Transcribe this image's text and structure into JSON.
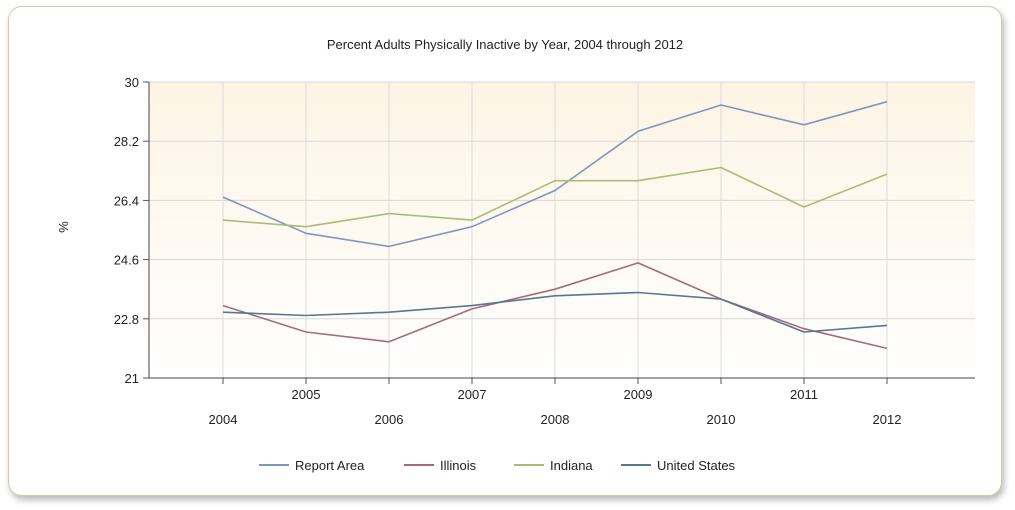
{
  "chart_data": {
    "type": "line",
    "title": "Percent Adults Physically Inactive by Year, 2004 through 2012",
    "ylabel": "%",
    "xlabel": "",
    "x": [
      "2004",
      "2005",
      "2006",
      "2007",
      "2008",
      "2009",
      "2010",
      "2011",
      "2012"
    ],
    "ylim": [
      21,
      30
    ],
    "yticks": [
      "21",
      "22.8",
      "24.6",
      "26.4",
      "28.2",
      "30"
    ],
    "grid": true,
    "legend_position": "bottom",
    "series": [
      {
        "name": "Report Area",
        "color": "#7e97bf",
        "values": [
          26.5,
          25.4,
          25.0,
          25.6,
          26.7,
          28.5,
          29.3,
          28.7,
          29.4
        ]
      },
      {
        "name": "Illinois",
        "color": "#a86a78",
        "values": [
          23.2,
          22.4,
          22.1,
          23.1,
          23.7,
          24.5,
          23.4,
          22.5,
          21.9
        ]
      },
      {
        "name": "Indiana",
        "color": "#a9bc79",
        "values": [
          25.8,
          25.6,
          26.0,
          25.8,
          27.0,
          27.0,
          27.4,
          26.2,
          27.2
        ]
      },
      {
        "name": "United States",
        "color": "#55798f",
        "values": [
          23.0,
          22.9,
          23.0,
          23.2,
          23.5,
          23.6,
          23.4,
          22.4,
          22.6
        ]
      }
    ]
  }
}
